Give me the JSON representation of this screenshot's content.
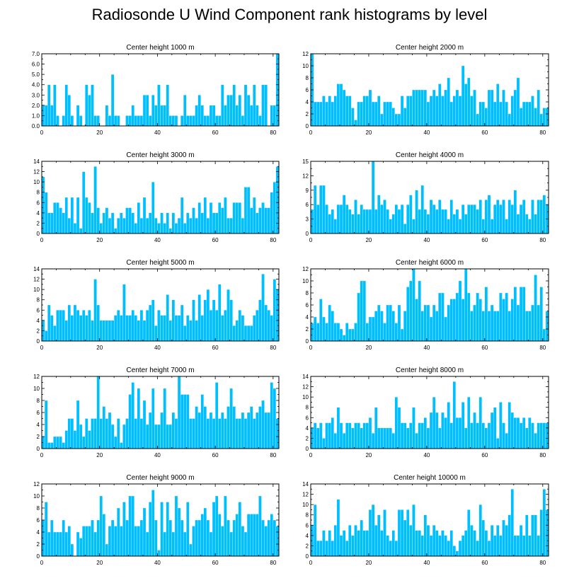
{
  "title": "Radiosonde U Wind Component rank histograms by level",
  "colors": {
    "bar": "#00bfff",
    "axis": "#000000"
  },
  "chart_data": [
    {
      "type": "bar",
      "title": "Center height 1000 m",
      "xlim": [
        0,
        82
      ],
      "ylim": [
        0,
        7
      ],
      "xticks": [
        0,
        20,
        40,
        60,
        80
      ],
      "yticks": [
        0,
        1,
        2,
        3,
        4,
        5,
        6,
        7
      ],
      "ytick_labels": [
        "0.0",
        "1.0",
        "2.0",
        "3.0",
        "4.0",
        "5.0",
        "6.0",
        "7.0"
      ],
      "values": [
        2,
        2,
        4,
        2,
        4,
        1,
        0,
        1,
        4,
        3,
        1,
        0,
        2,
        1,
        0,
        4,
        3,
        4,
        1,
        1,
        0,
        0,
        2,
        1,
        5,
        1,
        1,
        0,
        0,
        1,
        1,
        2,
        1,
        1,
        1,
        3,
        3,
        1,
        3,
        2,
        4,
        2,
        2,
        4,
        1,
        1,
        1,
        0,
        1,
        3,
        1,
        1,
        1,
        2,
        3,
        2,
        1,
        1,
        2,
        2,
        1,
        1,
        4,
        2,
        3,
        3,
        4,
        2,
        3,
        1,
        4,
        3,
        2,
        4,
        2,
        1,
        4,
        4,
        0,
        2,
        2,
        7
      ]
    },
    {
      "type": "bar",
      "title": "Center height 2000 m",
      "xlim": [
        0,
        82
      ],
      "ylim": [
        0,
        12
      ],
      "xticks": [
        0,
        20,
        40,
        60,
        80
      ],
      "yticks": [
        0,
        2,
        4,
        6,
        8,
        10,
        12
      ],
      "ytick_labels": [
        "0",
        "2",
        "4",
        "6",
        "8",
        "10",
        "12"
      ],
      "values": [
        12,
        4,
        4,
        4,
        5,
        4,
        5,
        4,
        5,
        7,
        7,
        6,
        5,
        5,
        3,
        1,
        4,
        4,
        5,
        5,
        6,
        4,
        4,
        5,
        2,
        4,
        4,
        4,
        3,
        2,
        2,
        5,
        3,
        5,
        5,
        6,
        6,
        6,
        6,
        6,
        4,
        5,
        6,
        5,
        7,
        5,
        6,
        8,
        4,
        5,
        6,
        5,
        10,
        7,
        8,
        5,
        6,
        2,
        4,
        4,
        3,
        6,
        6,
        4,
        7,
        4,
        6,
        4,
        2,
        5,
        6,
        8,
        3,
        4,
        4,
        4,
        5,
        3,
        6,
        2,
        3,
        3
      ]
    },
    {
      "type": "bar",
      "title": "Center height 3000 m",
      "xlim": [
        0,
        82
      ],
      "ylim": [
        0,
        14
      ],
      "xticks": [
        0,
        20,
        40,
        60,
        80
      ],
      "yticks": [
        0,
        2,
        4,
        6,
        8,
        10,
        12,
        14
      ],
      "ytick_labels": [
        "0",
        "2",
        "4",
        "6",
        "8",
        "10",
        "12",
        "14"
      ],
      "values": [
        11,
        8,
        4,
        4,
        6,
        6,
        5,
        4,
        7,
        3,
        7,
        2,
        7,
        1,
        12,
        7,
        6,
        4,
        13,
        5,
        2,
        4,
        5,
        3,
        4,
        1,
        3,
        4,
        3,
        5,
        5,
        4,
        2,
        6,
        3,
        7,
        3,
        4,
        10,
        3,
        2,
        4,
        2,
        4,
        1,
        4,
        2,
        3,
        7,
        2,
        4,
        3,
        5,
        3,
        6,
        4,
        7,
        3,
        6,
        4,
        4,
        6,
        5,
        7,
        3,
        3,
        6,
        6,
        6,
        3,
        9,
        9,
        5,
        7,
        4,
        5,
        6,
        5,
        5,
        8,
        10,
        13
      ]
    },
    {
      "type": "bar",
      "title": "Center height 4000 m",
      "xlim": [
        0,
        82
      ],
      "ylim": [
        0,
        15
      ],
      "xticks": [
        0,
        20,
        40,
        60,
        80
      ],
      "yticks": [
        0,
        3,
        6,
        9,
        12,
        15
      ],
      "ytick_labels": [
        "0",
        "3",
        "6",
        "9",
        "12",
        "15"
      ],
      "values": [
        5,
        10,
        6,
        10,
        10,
        6,
        4,
        5,
        3,
        6,
        6,
        8,
        6,
        5,
        4,
        7,
        4,
        6,
        5,
        5,
        5,
        15,
        5,
        8,
        6,
        7,
        5,
        3,
        4,
        6,
        5,
        6,
        2,
        6,
        8,
        3,
        9,
        5,
        10,
        5,
        4,
        7,
        6,
        5,
        7,
        5,
        5,
        3,
        7,
        4,
        5,
        3,
        6,
        4,
        6,
        6,
        6,
        5,
        7,
        3,
        7,
        8,
        3,
        6,
        7,
        6,
        7,
        3,
        7,
        6,
        9,
        4,
        6,
        7,
        4,
        3,
        7,
        4,
        7,
        7,
        8,
        6
      ]
    },
    {
      "type": "bar",
      "title": "Center height 5000 m",
      "xlim": [
        0,
        82
      ],
      "ylim": [
        0,
        14
      ],
      "xticks": [
        0,
        20,
        40,
        60,
        80
      ],
      "yticks": [
        0,
        2,
        4,
        6,
        8,
        10,
        12,
        14
      ],
      "ytick_labels": [
        "0",
        "2",
        "4",
        "6",
        "8",
        "10",
        "12",
        "14"
      ],
      "values": [
        4,
        2,
        7,
        5,
        3,
        6,
        6,
        6,
        4,
        7,
        5,
        7,
        6,
        5,
        6,
        5,
        6,
        4,
        12,
        7,
        4,
        4,
        4,
        4,
        4,
        5,
        6,
        5,
        11,
        5,
        5,
        6,
        5,
        4,
        6,
        4,
        6,
        7,
        8,
        3,
        6,
        5,
        5,
        9,
        4,
        8,
        5,
        5,
        7,
        3,
        5,
        4,
        8,
        4,
        9,
        5,
        8,
        10,
        6,
        8,
        6,
        11,
        5,
        6,
        10,
        8,
        3,
        4,
        6,
        5,
        3,
        3,
        3,
        5,
        6,
        8,
        13,
        7,
        6,
        5,
        12,
        10
      ]
    },
    {
      "type": "bar",
      "title": "Center height 6000 m",
      "xlim": [
        0,
        82
      ],
      "ylim": [
        0,
        12
      ],
      "xticks": [
        0,
        20,
        40,
        60,
        80
      ],
      "yticks": [
        0,
        2,
        4,
        6,
        8,
        10,
        12
      ],
      "ytick_labels": [
        "0",
        "2",
        "4",
        "6",
        "8",
        "10",
        "12"
      ],
      "values": [
        3,
        4,
        3,
        7,
        4,
        3,
        6,
        5,
        3,
        3,
        2,
        1,
        3,
        2,
        2,
        3,
        8,
        10,
        10,
        3,
        4,
        4,
        5,
        6,
        5,
        3,
        6,
        6,
        5,
        3,
        6,
        2,
        5,
        9,
        10,
        12,
        7,
        10,
        5,
        6,
        6,
        4,
        6,
        5,
        8,
        8,
        4,
        6,
        7,
        7,
        8,
        10,
        7,
        12,
        8,
        5,
        6,
        8,
        7,
        5,
        9,
        5,
        6,
        5,
        5,
        8,
        7,
        8,
        5,
        7,
        9,
        6,
        9,
        9,
        5,
        5,
        6,
        11,
        6,
        9,
        2,
        5
      ]
    },
    {
      "type": "bar",
      "title": "Center height 7000 m",
      "xlim": [
        0,
        82
      ],
      "ylim": [
        0,
        12
      ],
      "xticks": [
        0,
        20,
        40,
        60,
        80
      ],
      "yticks": [
        0,
        2,
        4,
        6,
        8,
        10,
        12
      ],
      "ytick_labels": [
        "0",
        "2",
        "4",
        "6",
        "8",
        "10",
        "12"
      ],
      "values": [
        2,
        8,
        1,
        1,
        2,
        2,
        2,
        1,
        3,
        5,
        5,
        3,
        8,
        4,
        2,
        5,
        3,
        5,
        5,
        12,
        5,
        7,
        5,
        6,
        4,
        2,
        5,
        1,
        4,
        5,
        9,
        11,
        5,
        10,
        5,
        8,
        4,
        6,
        10,
        4,
        4,
        6,
        10,
        4,
        4,
        6,
        5,
        12,
        9,
        9,
        9,
        5,
        5,
        7,
        6,
        9,
        7,
        5,
        6,
        5,
        11,
        5,
        6,
        5,
        7,
        10,
        7,
        5,
        5,
        6,
        5,
        6,
        7,
        5,
        6,
        7,
        8,
        6,
        6,
        11,
        10,
        5
      ]
    },
    {
      "type": "bar",
      "title": "Center height 8000 m",
      "xlim": [
        0,
        82
      ],
      "ylim": [
        0,
        14
      ],
      "xticks": [
        0,
        20,
        40,
        60,
        80
      ],
      "yticks": [
        0,
        2,
        4,
        6,
        8,
        10,
        12,
        14
      ],
      "ytick_labels": [
        "0",
        "2",
        "4",
        "6",
        "8",
        "10",
        "12",
        "14"
      ],
      "values": [
        4,
        5,
        4,
        5,
        2,
        5,
        5,
        6,
        3,
        8,
        5,
        3,
        5,
        5,
        4,
        5,
        5,
        4,
        5,
        5,
        6,
        3,
        8,
        4,
        4,
        4,
        4,
        4,
        3,
        10,
        8,
        5,
        5,
        4,
        5,
        8,
        3,
        5,
        5,
        6,
        4,
        7,
        10,
        7,
        4,
        7,
        6,
        9,
        5,
        13,
        6,
        6,
        9,
        4,
        10,
        5,
        7,
        5,
        10,
        5,
        4,
        5,
        7,
        8,
        2,
        9,
        5,
        3,
        9,
        7,
        6,
        6,
        5,
        6,
        4,
        6,
        5,
        3,
        5,
        5,
        5,
        5
      ]
    },
    {
      "type": "bar",
      "title": "Center height 9000 m",
      "xlim": [
        0,
        82
      ],
      "ylim": [
        0,
        12
      ],
      "xticks": [
        0,
        20,
        40,
        60,
        80
      ],
      "yticks": [
        0,
        2,
        4,
        6,
        8,
        10,
        12
      ],
      "ytick_labels": [
        "0",
        "2",
        "4",
        "6",
        "8",
        "10",
        "12"
      ],
      "values": [
        6,
        9,
        4,
        6,
        4,
        4,
        4,
        6,
        4,
        5,
        2,
        0,
        4,
        3,
        5,
        5,
        5,
        6,
        4,
        6,
        10,
        7,
        2,
        5,
        6,
        5,
        8,
        5,
        9,
        6,
        10,
        10,
        5,
        5,
        6,
        8,
        4,
        9,
        11,
        6,
        1,
        9,
        4,
        9,
        6,
        4,
        10,
        8,
        6,
        4,
        9,
        2,
        5,
        6,
        6,
        7,
        8,
        6,
        4,
        9,
        10,
        7,
        5,
        10,
        6,
        4,
        6,
        7,
        9,
        5,
        4,
        7,
        7,
        7,
        7,
        10,
        6,
        5,
        6,
        7,
        6,
        5
      ]
    },
    {
      "type": "bar",
      "title": "Center height 10000 m",
      "xlim": [
        0,
        82
      ],
      "ylim": [
        0,
        14
      ],
      "xticks": [
        0,
        20,
        40,
        60,
        80
      ],
      "yticks": [
        0,
        2,
        4,
        6,
        8,
        10,
        12,
        14
      ],
      "ytick_labels": [
        "0",
        "2",
        "4",
        "6",
        "8",
        "10",
        "12",
        "14"
      ],
      "values": [
        6,
        10,
        3,
        3,
        5,
        3,
        5,
        3,
        6,
        11,
        4,
        5,
        3,
        6,
        4,
        6,
        5,
        7,
        5,
        5,
        9,
        10,
        6,
        8,
        5,
        9,
        4,
        3,
        5,
        3,
        9,
        9,
        7,
        9,
        6,
        10,
        5,
        5,
        4,
        8,
        6,
        4,
        6,
        5,
        4,
        5,
        4,
        3,
        5,
        2,
        1,
        3,
        4,
        5,
        9,
        6,
        5,
        3,
        10,
        7,
        5,
        3,
        6,
        4,
        6,
        4,
        7,
        6,
        8,
        13,
        4,
        4,
        6,
        4,
        8,
        4,
        8,
        8,
        4,
        9,
        13,
        9
      ]
    }
  ]
}
